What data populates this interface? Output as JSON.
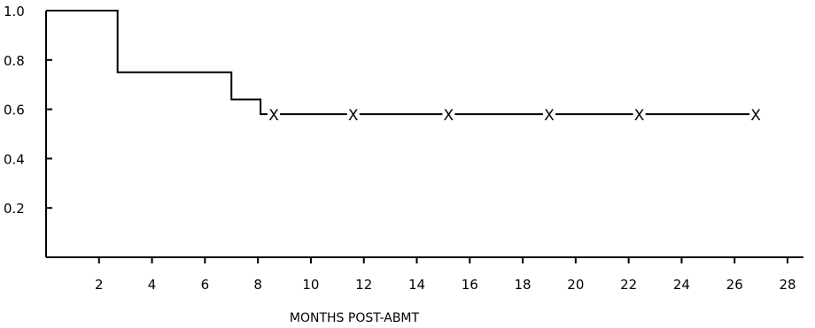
{
  "chart_data": {
    "type": "line",
    "subtype": "step (Kaplan-Meier survival curve)",
    "title": "",
    "xlabel": "MONTHS POST-ABMT",
    "ylabel": "",
    "xlim": [
      0,
      28
    ],
    "ylim": [
      0,
      1.0
    ],
    "x_ticks": [
      2,
      4,
      6,
      8,
      10,
      12,
      14,
      16,
      18,
      20,
      22,
      24,
      26,
      28
    ],
    "y_ticks": [
      {
        "value": 0.2,
        "label": "0.2"
      },
      {
        "value": 0.4,
        "label": "0.4"
      },
      {
        "value": 0.6,
        "label": "0.6"
      },
      {
        "value": 0.8,
        "label": "0.8"
      },
      {
        "value": 1.0,
        "label": "1.0"
      }
    ],
    "grid": false,
    "legend": "none",
    "series": [
      {
        "step_points": [
          {
            "x": 0,
            "y": 1.0
          },
          {
            "x": 2.7,
            "y": 0.75
          },
          {
            "x": 7.0,
            "y": 0.64
          },
          {
            "x": 8.1,
            "y": 0.58
          }
        ],
        "x_end": 26.8,
        "censored": [
          {
            "x": 8.6,
            "y": 0.58
          },
          {
            "x": 11.6,
            "y": 0.58
          },
          {
            "x": 15.2,
            "y": 0.58
          },
          {
            "x": 19.0,
            "y": 0.58
          },
          {
            "x": 22.4,
            "y": 0.58
          },
          {
            "x": 26.8,
            "y": 0.58
          }
        ],
        "censor_marker": "X"
      }
    ]
  }
}
